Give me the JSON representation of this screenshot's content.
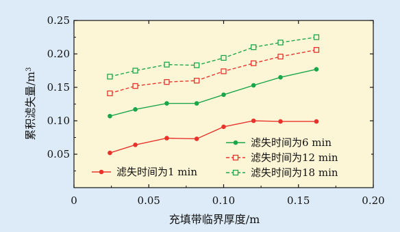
{
  "chart_data": {
    "type": "line",
    "xlabel": "充填带临界厚度/m",
    "ylabel_main": "累积滤失量/m",
    "ylabel_sup": "3",
    "xlim": [
      0,
      0.2
    ],
    "ylim": [
      0,
      0.25
    ],
    "x_ticks": [
      0,
      0.05,
      0.1,
      0.15,
      0.2
    ],
    "x_tick_labels": [
      "0",
      "0.05",
      "0.10",
      "0.15",
      "0.20"
    ],
    "y_ticks": [
      0.05,
      0.1,
      0.15,
      0.2,
      0.25
    ],
    "y_tick_labels": [
      "0.05",
      "0.10",
      "0.15",
      "0.20",
      "0.25"
    ],
    "grid": false,
    "x": [
      0.024,
      0.041,
      0.062,
      0.082,
      0.1,
      0.12,
      0.138,
      0.162
    ],
    "series": [
      {
        "name": "滤失时间为1 min",
        "color": "#e8322c",
        "marker": "filled-circle",
        "line_style": "solid",
        "legend_position": "bottom-left",
        "values": [
          0.052,
          0.064,
          0.074,
          0.073,
          0.091,
          0.1,
          0.099,
          0.099
        ]
      },
      {
        "name": "滤失时间为6 min",
        "color": "#1aa64a",
        "marker": "filled-circle",
        "line_style": "solid",
        "legend_position": "lower-right",
        "values": [
          0.107,
          0.117,
          0.126,
          0.126,
          0.139,
          0.153,
          0.165,
          0.177
        ]
      },
      {
        "name": "滤失时间为12 min",
        "color": "#e8322c",
        "marker": "open-square",
        "line_style": "dashed",
        "legend_position": "lower-right",
        "values": [
          0.141,
          0.152,
          0.158,
          0.16,
          0.174,
          0.186,
          0.196,
          0.206
        ]
      },
      {
        "name": "滤失时间为18 min",
        "color": "#1aa64a",
        "marker": "open-square",
        "line_style": "dashed",
        "legend_position": "lower-right",
        "values": [
          0.166,
          0.175,
          0.184,
          0.183,
          0.194,
          0.21,
          0.217,
          0.225
        ]
      }
    ],
    "plot_background": "#fdf6d6",
    "page_background": "#dcebf7"
  }
}
